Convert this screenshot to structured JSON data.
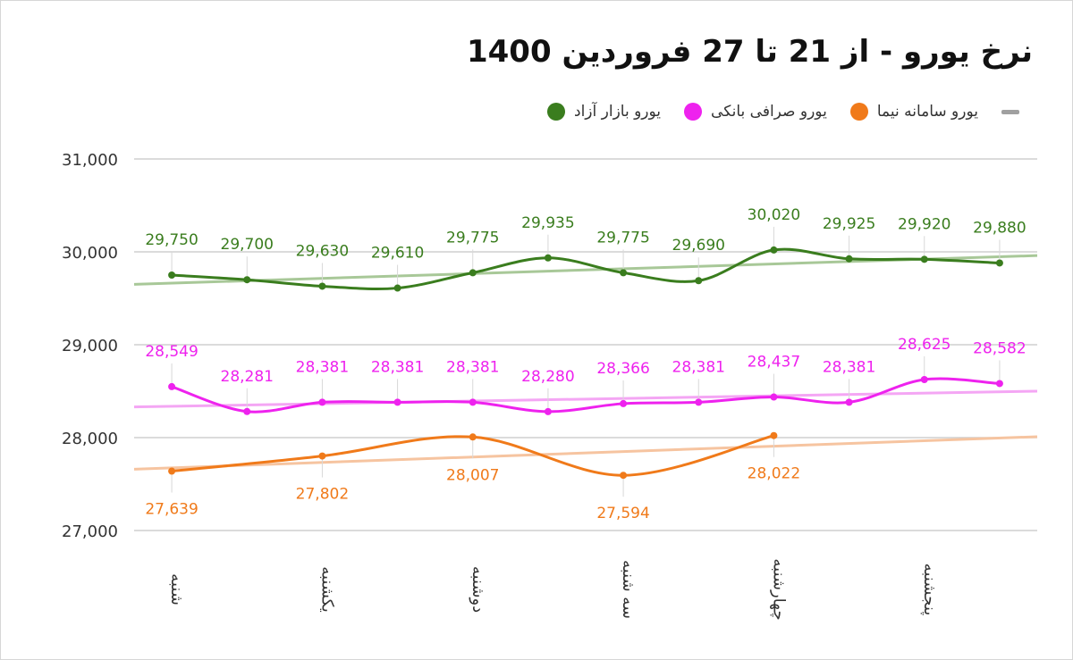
{
  "chart_data": {
    "type": "line",
    "title": "نرخ یورو - از 21 تا 27 فروردین 1400",
    "ylim": [
      27000,
      31000
    ],
    "y_ticks": [
      "31,000",
      "30,000",
      "29,000",
      "28,000",
      "27,000"
    ],
    "y_tick_values": [
      31000,
      30000,
      29000,
      28000,
      27000
    ],
    "grid": true,
    "legend_position": "top",
    "x_range": [
      0,
      12
    ],
    "x_ticks": [
      {
        "label": "شنبه",
        "x": 0.5
      },
      {
        "label": "یکشنبه",
        "x": 2.5
      },
      {
        "label": "دوشنبه",
        "x": 4.5
      },
      {
        "label": "سه شنبه",
        "x": 6.5
      },
      {
        "label": "چهارشنبه",
        "x": 8.5
      },
      {
        "label": "پنجشنبه",
        "x": 10.5
      }
    ],
    "series": [
      {
        "name": "یورو بازار آزاد",
        "color": "#3a7d1e",
        "trend_color": "#a8c898",
        "trend_line": [
          29650,
          29960
        ],
        "label_position": "above",
        "x": [
          0.5,
          1.5,
          2.5,
          3.5,
          4.5,
          5.5,
          6.5,
          7.5,
          8.5,
          9.5,
          10.5,
          11.5
        ],
        "values": [
          29750,
          29700,
          29630,
          29610,
          29775,
          29935,
          29775,
          29690,
          30020,
          29925,
          29920,
          29880
        ],
        "labels": [
          "29,750",
          "29,700",
          "29,630",
          "29,610",
          "29,775",
          "29,935",
          "29,775",
          "29,690",
          "30,020",
          "29,925",
          "29,920",
          "29,880"
        ]
      },
      {
        "name": "یورو صرافی بانکی",
        "color": "#ee22ee",
        "trend_color": "#f4a6f4",
        "trend_line": [
          28330,
          28500
        ],
        "label_position": "above",
        "x": [
          0.5,
          1.5,
          2.5,
          3.5,
          4.5,
          5.5,
          6.5,
          7.5,
          8.5,
          9.5,
          10.5,
          11.5
        ],
        "values": [
          28549,
          28281,
          28381,
          28381,
          28381,
          28280,
          28366,
          28381,
          28437,
          28381,
          28625,
          28582
        ],
        "labels": [
          "28,549",
          "28,281",
          "28,381",
          "28,381",
          "28,381",
          "28,280",
          "28,366",
          "28,381",
          "28,437",
          "28,381",
          "28,625",
          "28,582"
        ]
      },
      {
        "name": "یورو سامانه نیما",
        "color": "#f07a1a",
        "trend_color": "#f6c4a0",
        "trend_line": [
          27660,
          28010
        ],
        "label_position": "below",
        "x": [
          0.5,
          2.5,
          4.5,
          6.5,
          8.5
        ],
        "values": [
          27639,
          27802,
          28007,
          27594,
          28022
        ],
        "labels": [
          "27,639",
          "27,802",
          "28,007",
          "27,594",
          "28,022"
        ]
      }
    ],
    "legend_extra": {
      "color": "#a0a0a0"
    }
  }
}
